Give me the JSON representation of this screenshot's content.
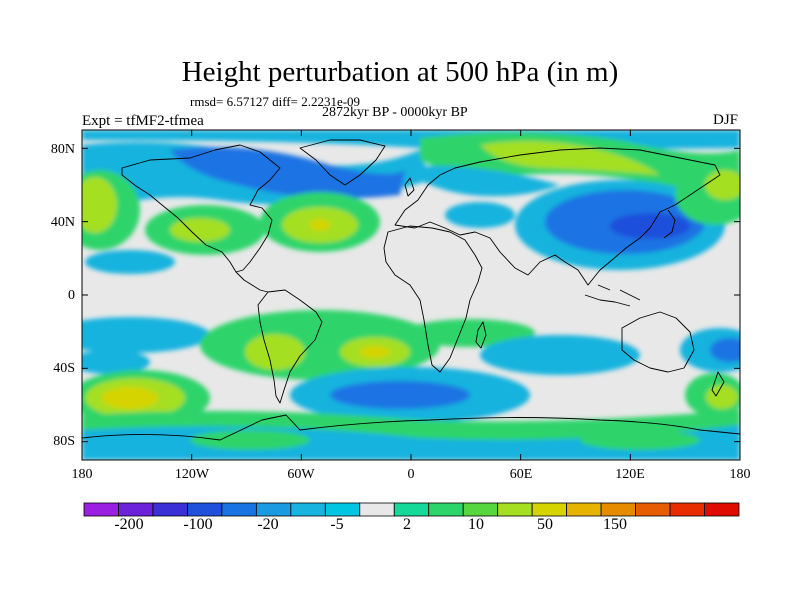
{
  "title": "Height perturbation at 500 hPa (in m)",
  "stats_line": "rmsd= 6.57127 diff= 2.2231e-09",
  "period_line": "2872kyr BP - 0000kyr BP",
  "experiment_line": "Expt = tfMF2-tfmea",
  "season": "DJF",
  "map": {
    "lat_labels": [
      "80N",
      "40N",
      "0",
      "40S",
      "80S"
    ],
    "lat_values": [
      80,
      40,
      0,
      -40,
      -80
    ],
    "lon_labels": [
      "180",
      "120W",
      "60W",
      "0",
      "60E",
      "120E",
      "180"
    ],
    "lon_values": [
      -180,
      -120,
      -60,
      0,
      60,
      120,
      180
    ],
    "lon_range": [
      -180,
      180
    ],
    "lat_range": [
      -90,
      90
    ]
  },
  "colorbar": {
    "labels": [
      "-200",
      "-100",
      "-20",
      "-5",
      "2",
      "10",
      "50",
      "150"
    ],
    "colors": [
      "#9a1fe0",
      "#6b22d9",
      "#3b2fd6",
      "#1f50dc",
      "#1a73e3",
      "#1a9ae0",
      "#18b3de",
      "#00c6e2",
      "#e8e8e8",
      "#14d999",
      "#2dd46b",
      "#57d640",
      "#a5df20",
      "#d6d400",
      "#e6b300",
      "#e68a00",
      "#e85c00",
      "#e82e00",
      "#e00b00"
    ],
    "range_note": "diverging height anomaly scale"
  },
  "anomaly_regions": [
    {
      "name": "North Atlantic positive",
      "lon": -40,
      "lat": 40,
      "value": 30
    },
    {
      "name": "North Pacific negative",
      "lon": -150,
      "lat": 55,
      "value": -10
    },
    {
      "name": "Asia negative",
      "lon": 115,
      "lat": 40,
      "value": -30
    },
    {
      "name": "Arctic positive",
      "lon": 75,
      "lat": 75,
      "value": 10
    },
    {
      "name": "South Pacific positive",
      "lon": -160,
      "lat": -55,
      "value": 40
    },
    {
      "name": "Southern Ocean negative",
      "lon": -10,
      "lat": -55,
      "value": -20
    },
    {
      "name": "South America positive",
      "lon": -60,
      "lat": -30,
      "value": 20
    }
  ]
}
